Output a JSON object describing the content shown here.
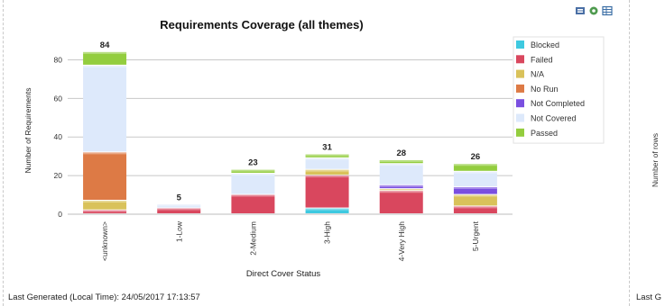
{
  "footer": {
    "last_generated": "Last Generated (Local Time): 24/05/2017 17:13:57",
    "right_fragment": "Last G"
  },
  "right_panel": {
    "ylabel": "Number of rows"
  },
  "toolbar": {
    "icons": [
      "export-icon",
      "settings-icon",
      "table-view-icon"
    ]
  },
  "colors": {
    "Blocked": "#3ec9e0",
    "Failed": "#d9475e",
    "N/A": "#d9c25a",
    "No Run": "#dd7a45",
    "Not Completed": "#7a4fe0",
    "Not Covered": "#dde9fb",
    "Passed": "#93cd3e"
  },
  "chart_data": {
    "type": "bar",
    "stacked": true,
    "title": "Requirements Coverage (all themes)",
    "xlabel": "Direct Cover Status",
    "ylabel": "Number of Requirements",
    "ylim": [
      0,
      90
    ],
    "yticks": [
      0,
      20,
      40,
      60,
      80
    ],
    "grid": true,
    "legend_position": "right",
    "categories": [
      "<unknown>",
      "1-Low",
      "2-Medium",
      "3-High",
      "4-Very High",
      "5-Urgent"
    ],
    "totals": [
      84,
      5,
      23,
      31,
      28,
      26
    ],
    "series": [
      {
        "name": "Blocked",
        "values": [
          0,
          0,
          0,
          3,
          0,
          0
        ]
      },
      {
        "name": "Failed",
        "values": [
          2,
          3,
          10,
          17,
          12,
          4
        ]
      },
      {
        "name": "N/A",
        "values": [
          5,
          0,
          0,
          3,
          1,
          6
        ]
      },
      {
        "name": "No Run",
        "values": [
          25,
          0,
          0,
          0,
          0,
          0
        ]
      },
      {
        "name": "Not Completed",
        "values": [
          0,
          0,
          0,
          0,
          2,
          4
        ]
      },
      {
        "name": "Not Covered",
        "values": [
          45,
          2,
          11,
          6,
          11,
          8
        ]
      },
      {
        "name": "Passed",
        "values": [
          7,
          0,
          2,
          2,
          2,
          4
        ]
      }
    ]
  }
}
